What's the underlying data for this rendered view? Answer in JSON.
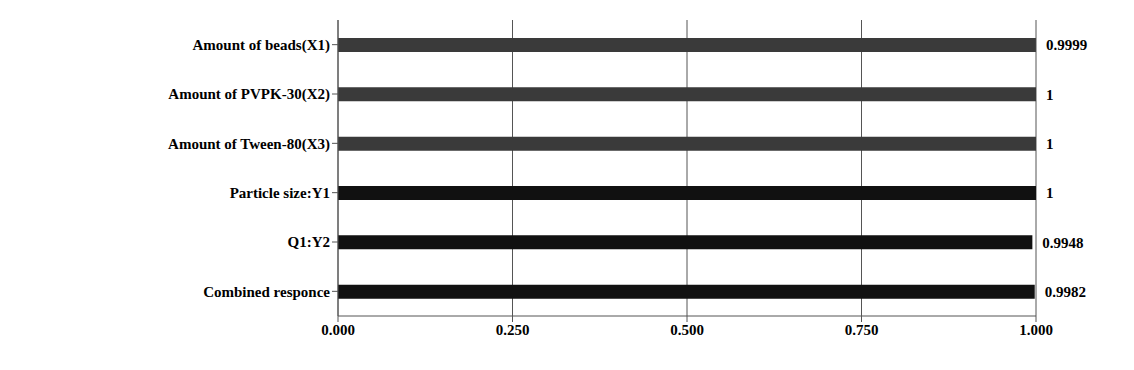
{
  "chart_data": {
    "type": "bar",
    "orientation": "horizontal",
    "categories": [
      "Amount of beads(X1)",
      "Amount of PVPK-30(X2)",
      "Amount of Tween-80(X3)",
      "Particle size:Y1",
      "Q1:Y2",
      "Combined responce"
    ],
    "values": [
      0.9999,
      1,
      1,
      1,
      0.9948,
      0.9982
    ],
    "colors": [
      "#3a3a3a",
      "#3a3a3a",
      "#3a3a3a",
      "#111111",
      "#111111",
      "#111111"
    ],
    "xlim": [
      0,
      1
    ],
    "xticks": [
      {
        "value": 0,
        "label": "0.000"
      },
      {
        "value": 0.25,
        "label": "0.250"
      },
      {
        "value": 0.5,
        "label": "0.500"
      },
      {
        "value": 0.75,
        "label": "0.750"
      },
      {
        "value": 1,
        "label": "1.000"
      }
    ],
    "grid": true,
    "data_labels": true
  }
}
